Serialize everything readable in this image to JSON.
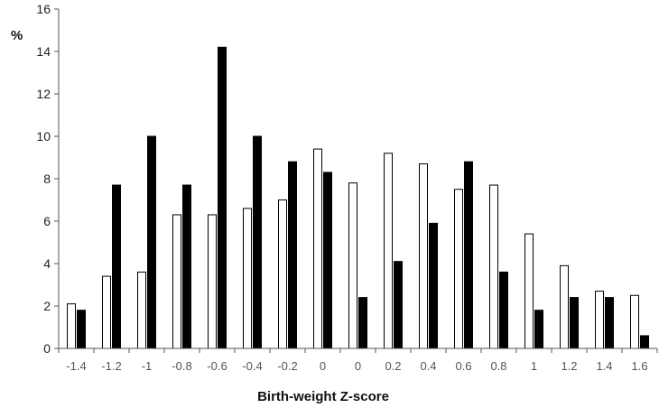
{
  "chart_data": {
    "type": "bar",
    "title": "",
    "xlabel": "Birth-weight Z-score",
    "ylabel": "%",
    "ylim": [
      0,
      16
    ],
    "yticks": [
      0,
      2,
      4,
      6,
      8,
      10,
      12,
      14,
      16
    ],
    "grid": false,
    "legend": "none",
    "categories": [
      "-1.4",
      "-1.2",
      "-1",
      "-0.8",
      "-0.6",
      "-0.4",
      "-0.2",
      "0",
      "0",
      "0.2",
      "0.4",
      "0.6",
      "0.8",
      "1",
      "1.2",
      "1.4",
      "1.6"
    ],
    "series": [
      {
        "fill": "#ffffff",
        "stroke": "#000000",
        "values": [
          2.1,
          3.4,
          3.6,
          6.3,
          6.3,
          6.6,
          7.0,
          9.4,
          7.8,
          9.2,
          8.7,
          7.5,
          7.7,
          5.4,
          3.9,
          2.7,
          2.5
        ]
      },
      {
        "fill": "#000000",
        "stroke": "#000000",
        "values": [
          1.8,
          7.7,
          10.0,
          7.7,
          14.2,
          10.0,
          8.8,
          8.3,
          2.4,
          4.1,
          5.9,
          8.8,
          3.6,
          1.8,
          2.4,
          2.4,
          0.6
        ]
      }
    ]
  }
}
